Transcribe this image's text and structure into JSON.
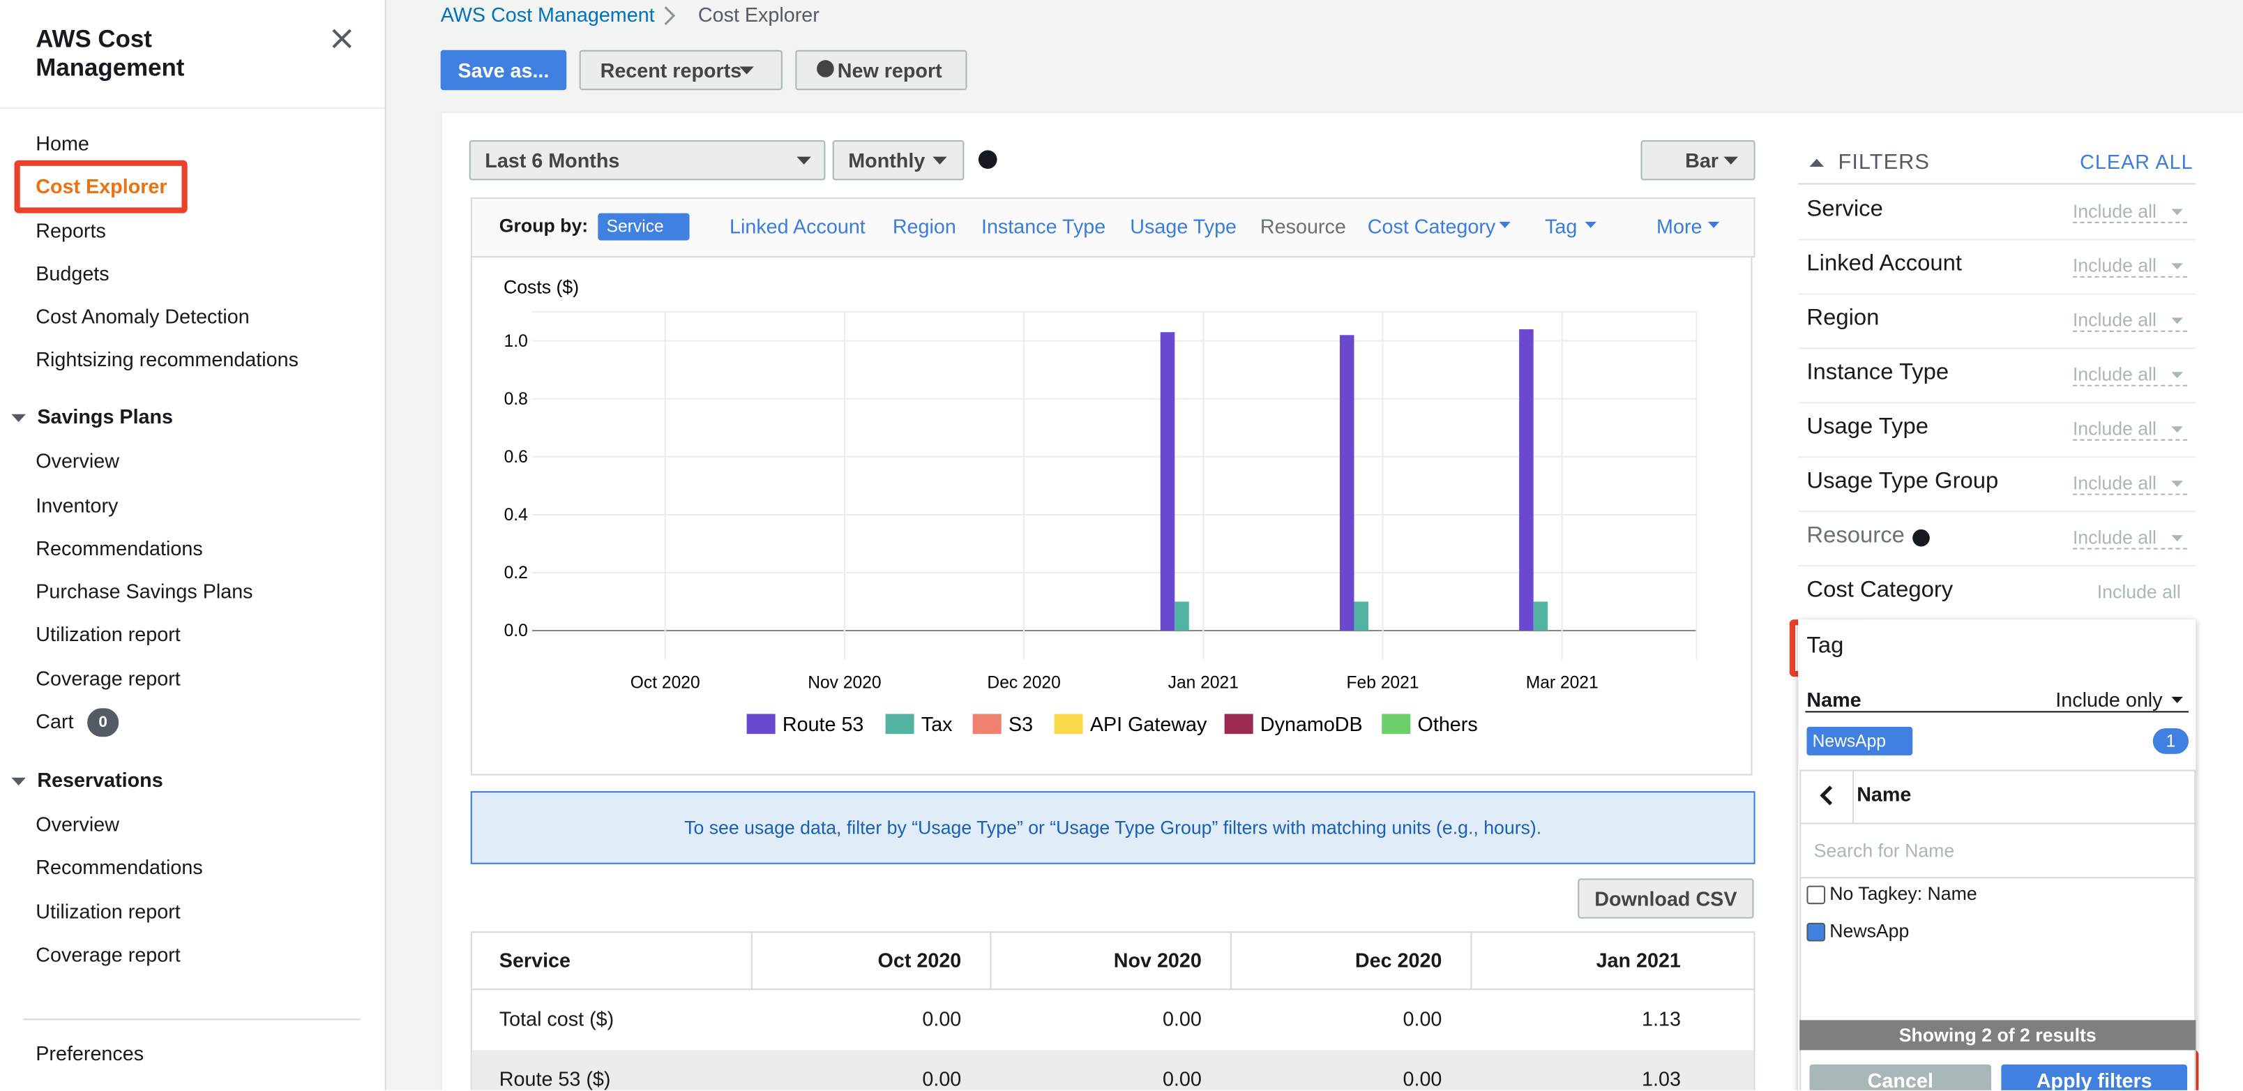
{
  "sidebar": {
    "title": "AWS Cost Management",
    "items": [
      "Home",
      "Cost Explorer",
      "Reports",
      "Budgets",
      "Cost Anomaly Detection",
      "Rightsizing recommendations"
    ],
    "sections": [
      {
        "title": "Savings Plans",
        "items": [
          "Overview",
          "Inventory",
          "Recommendations",
          "Purchase Savings Plans",
          "Utilization report",
          "Coverage report",
          "Cart"
        ]
      },
      {
        "title": "Reservations",
        "items": [
          "Overview",
          "Recommendations",
          "Utilization report",
          "Coverage report"
        ]
      }
    ],
    "cart_count": "0",
    "footer": "Preferences"
  },
  "breadcrumb": [
    "AWS Cost Management",
    "Cost Explorer"
  ],
  "toolbar": [
    "Save as...",
    "Recent reports",
    "New report"
  ],
  "controls": {
    "range": "Last 6 Months",
    "granularity": "Monthly",
    "chart_style": "Bar"
  },
  "group_by": {
    "label": "Group by:",
    "selected": "Service",
    "options": [
      "Linked Account",
      "Region",
      "Instance Type",
      "Usage Type",
      "Resource",
      "Cost Category",
      "Tag",
      "More"
    ]
  },
  "chart_data": {
    "type": "bar",
    "title": "Costs ($)",
    "categories": [
      "Oct 2020",
      "Nov 2020",
      "Dec 2020",
      "Jan 2021",
      "Feb 2021",
      "Mar 2021"
    ],
    "series": [
      {
        "name": "Route 53",
        "color": "#6a48d0",
        "values": [
          0,
          0,
          0,
          1.03,
          1.02,
          1.04
        ]
      },
      {
        "name": "Tax",
        "color": "#52b3a3",
        "values": [
          0,
          0,
          0,
          0.1,
          0.1,
          0.1
        ]
      },
      {
        "name": "S3",
        "color": "#f08070",
        "values": [
          0,
          0,
          0,
          0,
          0,
          0
        ]
      },
      {
        "name": "API Gateway",
        "color": "#f9d949",
        "values": [
          0,
          0,
          0,
          0,
          0,
          0
        ]
      },
      {
        "name": "DynamoDB",
        "color": "#9c2a55",
        "values": [
          0,
          0,
          0,
          0,
          0,
          0
        ]
      },
      {
        "name": "Others",
        "color": "#6ccf6a",
        "values": [
          0,
          0,
          0,
          0,
          0,
          0
        ]
      }
    ],
    "ylim": [
      -0.1,
      1.1
    ],
    "yticks": [
      {
        "value": 0,
        "label": "0.0"
      },
      0.2,
      0.4,
      0.6,
      0.8,
      {
        "value": 1,
        "label": "1.0"
      }
    ],
    "grid": true
  },
  "notice": "To see usage data, filter by “Usage Type” or “Usage Type Group” filters with matching units (e.g., hours).",
  "download": "Download CSV",
  "table": {
    "header": [
      "Service",
      "Oct 2020",
      "Nov 2020",
      "Dec 2020",
      "Jan 2021"
    ],
    "rows": [
      [
        "Total cost ($)",
        "0.00",
        "0.00",
        "0.00",
        "1.13"
      ],
      [
        "Route 53 ($)",
        "0.00",
        "0.00",
        "0.00",
        "1.03"
      ]
    ]
  },
  "filters": {
    "title": "FILTERS",
    "clear": "CLEAR ALL",
    "rows": [
      {
        "name": "Service",
        "value": "Include all"
      },
      {
        "name": "Linked Account",
        "value": "Include all"
      },
      {
        "name": "Region",
        "value": "Include all"
      },
      {
        "name": "Instance Type",
        "value": "Include all"
      },
      {
        "name": "Usage Type",
        "value": "Include all"
      },
      {
        "name": "Usage Type Group",
        "value": "Include all"
      },
      {
        "name": "Resource",
        "value": "Include all"
      },
      {
        "name": "Cost Category",
        "value": "Include all"
      }
    ],
    "tag": {
      "title": "Tag",
      "key": "Name",
      "mode": "Include only",
      "chip": "NewsApp",
      "count": "1",
      "list_title": "Name",
      "search": "Search for Name",
      "options": [
        {
          "label": "No Tagkey: Name",
          "checked": false
        },
        {
          "label": "NewsApp",
          "checked": true
        }
      ],
      "status": "Showing 2 of 2 results",
      "cancel": "Cancel",
      "apply": "Apply filters"
    }
  }
}
